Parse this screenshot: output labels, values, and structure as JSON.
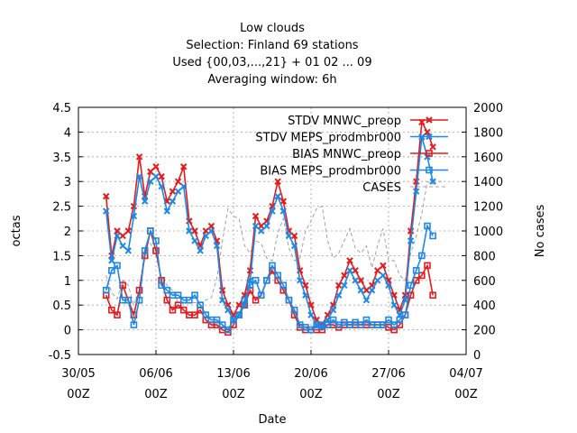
{
  "chart_data": {
    "type": "line",
    "title": [
      "Low clouds",
      "Selection: Finland     69 stations",
      "Used {00,03,...,21} + 01 02 ... 09",
      "Averaging window:  6h"
    ],
    "xlabel": "Date",
    "ylabel": "octas",
    "y2label": "No cases",
    "xlim": [
      "2015-05-30 00:00",
      "2015-07-04 00:00"
    ],
    "ylim": [
      -0.5,
      4.5
    ],
    "y2lim": [
      0,
      2000
    ],
    "x_ticks": [
      {
        "date": "30/05",
        "hour": "00Z",
        "day": 0
      },
      {
        "date": "06/06",
        "hour": "00Z",
        "day": 7
      },
      {
        "date": "13/06",
        "hour": "00Z",
        "day": 14
      },
      {
        "date": "20/06",
        "hour": "00Z",
        "day": 21
      },
      {
        "date": "27/06",
        "hour": "00Z",
        "day": 28
      },
      {
        "date": "04/07",
        "hour": "00Z",
        "day": 35
      }
    ],
    "y_ticks": [
      "-0.5",
      "0",
      "0.5",
      "1",
      "1.5",
      "2",
      "2.5",
      "3",
      "3.5",
      "4",
      "4.5"
    ],
    "y2_ticks": [
      "0",
      "200",
      "400",
      "600",
      "800",
      "1000",
      "1200",
      "1400",
      "1600",
      "1800",
      "2000"
    ],
    "grid": true,
    "legend_position": "top-right",
    "series": [
      {
        "name": "STDV MNWC_preop",
        "color": "#e41a1c",
        "marker": "x",
        "axis": "left",
        "x": [
          2.5,
          3.0,
          3.5,
          4.0,
          4.5,
          5.0,
          5.5,
          6.0,
          6.5,
          7.0,
          7.5,
          8.0,
          8.5,
          9.0,
          9.5,
          10.0,
          10.5,
          11.0,
          11.5,
          12.0,
          12.5,
          13.0,
          13.5,
          14.0,
          14.5,
          15.0,
          15.5,
          16.0,
          16.5,
          17.0,
          17.5,
          18.0,
          18.5,
          19.0,
          19.5,
          20.0,
          20.5,
          21.0,
          21.5,
          22.0,
          22.5,
          23.0,
          23.5,
          24.0,
          24.5,
          25.0,
          25.5,
          26.0,
          26.5,
          27.0,
          27.5,
          28.0,
          28.5,
          29.0,
          29.5,
          30.0,
          30.5,
          31.0,
          31.5,
          32.0
        ],
        "y": [
          2.7,
          1.5,
          2.0,
          1.9,
          2.0,
          2.5,
          3.5,
          2.7,
          3.2,
          3.3,
          3.1,
          2.6,
          2.8,
          3.0,
          3.3,
          2.2,
          2.0,
          1.7,
          2.0,
          2.1,
          1.8,
          0.8,
          0.5,
          0.3,
          0.5,
          0.7,
          1.2,
          2.3,
          2.1,
          2.2,
          2.5,
          3.0,
          2.6,
          2.0,
          1.9,
          1.2,
          0.9,
          0.5,
          0.2,
          0.1,
          0.3,
          0.5,
          0.9,
          1.1,
          1.4,
          1.2,
          1.0,
          0.8,
          0.9,
          1.2,
          1.3,
          1.0,
          0.7,
          0.4,
          0.7,
          2.0,
          3.0,
          4.2,
          4.0,
          3.7
        ]
      },
      {
        "name": "STDV MEPS_prodmbr000",
        "color": "#1e88e5",
        "marker": "x",
        "axis": "left",
        "x": [
          2.5,
          3.0,
          3.5,
          4.0,
          4.5,
          5.0,
          5.5,
          6.0,
          6.5,
          7.0,
          7.5,
          8.0,
          8.5,
          9.0,
          9.5,
          10.0,
          10.5,
          11.0,
          11.5,
          12.0,
          12.5,
          13.0,
          13.5,
          14.0,
          14.5,
          15.0,
          15.5,
          16.0,
          16.5,
          17.0,
          17.5,
          18.0,
          18.5,
          19.0,
          19.5,
          20.0,
          20.5,
          21.0,
          21.5,
          22.0,
          22.5,
          23.0,
          23.5,
          24.0,
          24.5,
          25.0,
          25.5,
          26.0,
          26.5,
          27.0,
          27.5,
          28.0,
          28.5,
          29.0,
          29.5,
          30.0,
          30.5,
          31.0,
          31.5,
          32.0
        ],
        "y": [
          2.4,
          1.4,
          1.9,
          1.7,
          1.6,
          2.3,
          3.1,
          2.6,
          3.0,
          3.1,
          2.9,
          2.4,
          2.6,
          2.8,
          2.9,
          2.0,
          1.8,
          1.6,
          1.9,
          2.0,
          1.7,
          0.6,
          0.4,
          0.2,
          0.3,
          0.5,
          1.0,
          2.1,
          2.0,
          2.1,
          2.4,
          2.7,
          2.4,
          1.9,
          1.7,
          1.0,
          0.7,
          0.3,
          0.1,
          0.05,
          0.2,
          0.4,
          0.7,
          0.9,
          1.2,
          1.0,
          0.8,
          0.6,
          0.8,
          1.0,
          1.1,
          0.9,
          0.5,
          0.3,
          0.6,
          1.8,
          2.8,
          3.9,
          3.5,
          3.0
        ]
      },
      {
        "name": "BIAS MNWC_preop",
        "color": "#e41a1c",
        "marker": "square",
        "axis": "left",
        "x": [
          2.5,
          3.0,
          3.5,
          4.0,
          4.5,
          5.0,
          5.5,
          6.0,
          6.5,
          7.0,
          7.5,
          8.0,
          8.5,
          9.0,
          9.5,
          10.0,
          10.5,
          11.0,
          11.5,
          12.0,
          12.5,
          13.0,
          13.5,
          14.0,
          14.5,
          15.0,
          15.5,
          16.0,
          16.5,
          17.0,
          17.5,
          18.0,
          18.5,
          19.0,
          19.5,
          20.0,
          20.5,
          21.0,
          21.5,
          22.0,
          22.5,
          23.0,
          23.5,
          24.0,
          24.5,
          25.0,
          25.5,
          26.0,
          26.5,
          27.0,
          27.5,
          28.0,
          28.5,
          29.0,
          29.5,
          30.0,
          30.5,
          31.0,
          31.5,
          32.0
        ],
        "y": [
          0.7,
          0.4,
          0.3,
          0.9,
          0.6,
          0.3,
          0.8,
          1.5,
          2.0,
          1.6,
          1.0,
          0.6,
          0.4,
          0.5,
          0.4,
          0.3,
          0.3,
          0.4,
          0.2,
          0.1,
          0.1,
          0.0,
          -0.05,
          0.1,
          0.3,
          0.5,
          0.8,
          0.6,
          0.7,
          1.0,
          1.2,
          1.0,
          0.8,
          0.6,
          0.3,
          0.05,
          0.0,
          0.0,
          0.0,
          0.0,
          0.1,
          0.1,
          0.05,
          0.1,
          0.1,
          0.1,
          0.1,
          0.1,
          0.1,
          0.1,
          0.1,
          0.05,
          0.0,
          0.1,
          0.3,
          0.7,
          1.0,
          1.1,
          1.3,
          0.7
        ]
      },
      {
        "name": "BIAS MEPS_prodmbr000",
        "color": "#1e88e5",
        "marker": "square",
        "axis": "left",
        "x": [
          2.5,
          3.0,
          3.5,
          4.0,
          4.5,
          5.0,
          5.5,
          6.0,
          6.5,
          7.0,
          7.5,
          8.0,
          8.5,
          9.0,
          9.5,
          10.0,
          10.5,
          11.0,
          11.5,
          12.0,
          12.5,
          13.0,
          13.5,
          14.0,
          14.5,
          15.0,
          15.5,
          16.0,
          16.5,
          17.0,
          17.5,
          18.0,
          18.5,
          19.0,
          19.5,
          20.0,
          20.5,
          21.0,
          21.5,
          22.0,
          22.5,
          23.0,
          23.5,
          24.0,
          24.5,
          25.0,
          25.5,
          26.0,
          26.5,
          27.0,
          27.5,
          28.0,
          28.5,
          29.0,
          29.5,
          30.0,
          30.5,
          31.0,
          31.5,
          32.0
        ],
        "y": [
          0.8,
          1.2,
          1.3,
          0.6,
          0.6,
          0.1,
          0.6,
          1.6,
          2.0,
          1.8,
          0.9,
          0.8,
          0.7,
          0.7,
          0.6,
          0.6,
          0.7,
          0.5,
          0.3,
          0.2,
          0.2,
          0.1,
          0.0,
          0.2,
          0.3,
          0.6,
          0.9,
          1.0,
          0.7,
          1.0,
          1.3,
          1.1,
          0.9,
          0.6,
          0.4,
          0.1,
          0.05,
          0.0,
          0.1,
          0.1,
          0.1,
          0.2,
          0.1,
          0.15,
          0.1,
          0.15,
          0.1,
          0.2,
          0.1,
          0.1,
          0.1,
          0.2,
          0.1,
          0.2,
          0.3,
          0.9,
          1.2,
          1.5,
          2.1,
          1.9
        ]
      },
      {
        "name": "CASES",
        "color": "#a0a0a0",
        "marker": "none",
        "axis": "right",
        "dashed": true,
        "x": [
          2.5,
          3.0,
          3.5,
          4.0,
          4.5,
          5.0,
          5.5,
          6.0,
          6.5,
          7.0,
          7.5,
          8.0,
          8.5,
          9.0,
          9.5,
          10.0,
          10.5,
          11.0,
          11.5,
          12.0,
          12.5,
          13.0,
          13.5,
          14.0,
          14.5,
          15.0,
          15.5,
          16.0,
          16.5,
          17.0,
          17.5,
          18.0,
          18.5,
          19.0,
          19.5,
          20.0,
          20.5,
          21.0,
          21.5,
          22.0,
          22.5,
          23.0,
          23.5,
          24.0,
          24.5,
          25.0,
          25.5,
          26.0,
          26.5,
          27.0,
          27.5,
          28.0,
          28.5,
          29.0,
          29.5,
          30.0,
          30.5,
          31.0,
          31.5,
          32.0,
          32.5,
          33.0
        ],
        "y": [
          640,
          500,
          450,
          600,
          560,
          400,
          520,
          860,
          900,
          800,
          620,
          560,
          520,
          420,
          430,
          420,
          420,
          420,
          440,
          460,
          620,
          920,
          1180,
          1120,
          1100,
          880,
          820,
          920,
          900,
          780,
          760,
          980,
          1100,
          860,
          760,
          780,
          1000,
          1080,
          1180,
          1200,
          920,
          780,
          820,
          920,
          1020,
          860,
          820,
          880,
          700,
          880,
          1020,
          760,
          760,
          640,
          600,
          820,
          960,
          1140,
          1400,
          1380,
          1400,
          1400
        ]
      }
    ]
  }
}
